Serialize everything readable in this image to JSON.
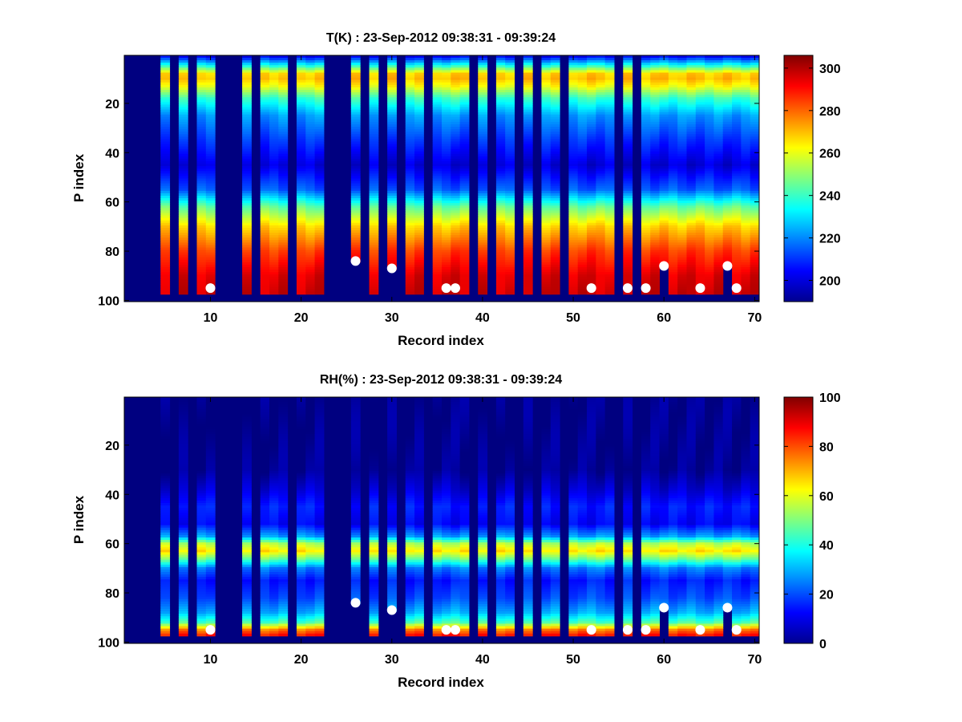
{
  "chart_data": [
    {
      "type": "heatmap",
      "title": "T(K) : 23-Sep-2012 09:38:31 - 09:39:24",
      "xlabel": "Record index",
      "ylabel": "P index",
      "xlim": [
        0.5,
        70.5
      ],
      "ylim": [
        100.5,
        0.5
      ],
      "x_ticks": [
        10,
        20,
        30,
        40,
        50,
        60,
        70
      ],
      "y_ticks": [
        20,
        40,
        60,
        80,
        100
      ],
      "colorbar": {
        "min": 190,
        "max": 306,
        "ticks": [
          200,
          220,
          240,
          260,
          280,
          300
        ]
      },
      "missing_records": [
        1,
        2,
        3,
        4,
        6,
        8,
        11,
        12,
        13,
        15,
        19,
        23,
        24,
        25,
        27,
        29,
        31,
        34,
        39,
        41,
        44,
        46,
        49,
        55,
        57
      ],
      "surface_levels": {
        "26": 84,
        "30": 87,
        "60": 86,
        "67": 86
      },
      "profile_bottom_index": 97,
      "markers": [
        {
          "x": 10,
          "y": 95
        },
        {
          "x": 26,
          "y": 84
        },
        {
          "x": 30,
          "y": 87
        },
        {
          "x": 36,
          "y": 95
        },
        {
          "x": 37,
          "y": 95
        },
        {
          "x": 52,
          "y": 95
        },
        {
          "x": 56,
          "y": 95
        },
        {
          "x": 58,
          "y": 95
        },
        {
          "x": 60,
          "y": 86
        },
        {
          "x": 64,
          "y": 95
        },
        {
          "x": 67,
          "y": 86
        },
        {
          "x": 68,
          "y": 95
        }
      ],
      "profile": {
        "p_index": [
          1,
          5,
          8,
          10,
          13,
          18,
          25,
          35,
          45,
          55,
          62,
          70,
          80,
          90,
          97
        ],
        "value": [
          205,
          240,
          268,
          270,
          262,
          240,
          222,
          210,
          200,
          215,
          245,
          268,
          285,
          295,
          297
        ]
      }
    },
    {
      "type": "heatmap",
      "title": "RH(%) : 23-Sep-2012 09:38:31 - 09:39:24",
      "xlabel": "Record index",
      "ylabel": "P index",
      "xlim": [
        0.5,
        70.5
      ],
      "ylim": [
        100.5,
        0.5
      ],
      "x_ticks": [
        10,
        20,
        30,
        40,
        50,
        60,
        70
      ],
      "y_ticks": [
        20,
        40,
        60,
        80,
        100
      ],
      "colorbar": {
        "min": 0,
        "max": 100,
        "ticks": [
          0,
          20,
          40,
          60,
          80,
          100
        ]
      },
      "missing_records": [
        1,
        2,
        3,
        4,
        6,
        8,
        11,
        12,
        13,
        15,
        19,
        23,
        24,
        25,
        27,
        29,
        31,
        34,
        39,
        41,
        44,
        46,
        49,
        55,
        57
      ],
      "surface_levels": {
        "26": 84,
        "30": 87,
        "60": 86,
        "67": 86
      },
      "profile_bottom_index": 97,
      "markers": [
        {
          "x": 10,
          "y": 95
        },
        {
          "x": 26,
          "y": 84
        },
        {
          "x": 30,
          "y": 87
        },
        {
          "x": 36,
          "y": 95
        },
        {
          "x": 37,
          "y": 95
        },
        {
          "x": 52,
          "y": 95
        },
        {
          "x": 56,
          "y": 95
        },
        {
          "x": 58,
          "y": 95
        },
        {
          "x": 60,
          "y": 86
        },
        {
          "x": 64,
          "y": 95
        },
        {
          "x": 67,
          "y": 86
        },
        {
          "x": 68,
          "y": 95
        }
      ],
      "profile": {
        "p_index": [
          1,
          30,
          38,
          45,
          52,
          57,
          60,
          63,
          66,
          70,
          75,
          82,
          88,
          92,
          95,
          97
        ],
        "value": [
          2,
          2,
          8,
          15,
          12,
          28,
          55,
          65,
          50,
          25,
          15,
          20,
          30,
          45,
          75,
          85
        ]
      }
    }
  ]
}
